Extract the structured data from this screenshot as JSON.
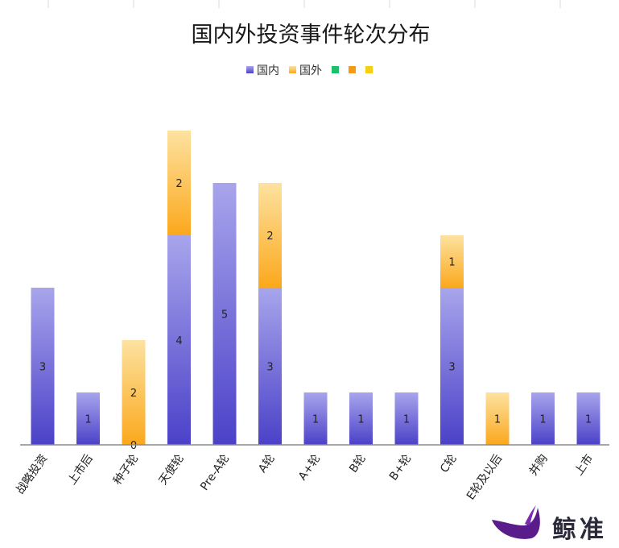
{
  "chart_data": {
    "type": "bar",
    "stacked": true,
    "title": "国内外投资事件轮次分布",
    "categories": [
      "战略投资",
      "上市后",
      "种子轮",
      "天使轮",
      "Pre-A轮",
      "A轮",
      "A+轮",
      "B轮",
      "B+轮",
      "C轮",
      "E轮及以后",
      "并购",
      "上市"
    ],
    "series": [
      {
        "name": "国内",
        "values": [
          3,
          1,
          0,
          4,
          5,
          3,
          1,
          1,
          1,
          3,
          0,
          1,
          1
        ],
        "labels": [
          "3",
          "1",
          "0",
          "4",
          "5",
          "3",
          "1",
          "1",
          "1",
          "3",
          "",
          "1",
          "1"
        ]
      },
      {
        "name": "国外",
        "values": [
          0,
          0,
          2,
          2,
          0,
          2,
          0,
          0,
          0,
          1,
          1,
          0,
          0
        ],
        "labels": [
          "",
          "",
          "2",
          "2",
          "",
          "2",
          "",
          "",
          "",
          "1",
          "1",
          "",
          ""
        ]
      }
    ],
    "extra_legend_entries": [
      "",
      "",
      ""
    ],
    "ylim": [
      0,
      6
    ],
    "grid": false,
    "legend_position": "top-center",
    "colors": {
      "domestic_top": "#a8a5ec",
      "domestic_bottom": "#4b41c8",
      "foreign_top": "#fde2a0",
      "foreign_bottom": "#fba81c",
      "legend_green": "#1fbf6a",
      "legend_orange": "#f59a12",
      "legend_yellow": "#f5cf12"
    }
  },
  "brand": {
    "name": "鲸准"
  }
}
